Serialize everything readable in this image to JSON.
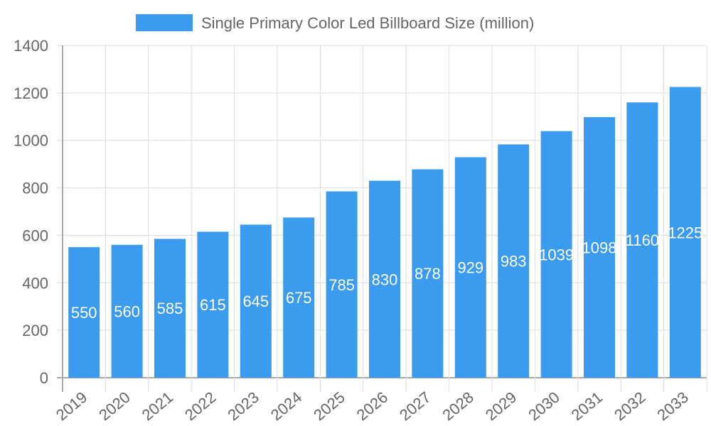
{
  "chart_data": {
    "type": "bar",
    "categories": [
      "2019",
      "2020",
      "2021",
      "2022",
      "2023",
      "2024",
      "2025",
      "2026",
      "2027",
      "2028",
      "2029",
      "2030",
      "2031",
      "2032",
      "2033"
    ],
    "series": [
      {
        "name": "Single Primary Color Led Billboard Size (million)",
        "values": [
          550,
          560,
          585,
          615,
          645,
          675,
          785,
          830,
          878,
          929,
          983,
          1039,
          1098,
          1160,
          1225
        ],
        "color": "#3a9bef"
      }
    ],
    "ylim": [
      0,
      1400
    ],
    "yticks": [
      0,
      200,
      400,
      600,
      800,
      1000,
      1200,
      1400
    ],
    "grid": true,
    "legend": "top",
    "data_labels": true
  }
}
